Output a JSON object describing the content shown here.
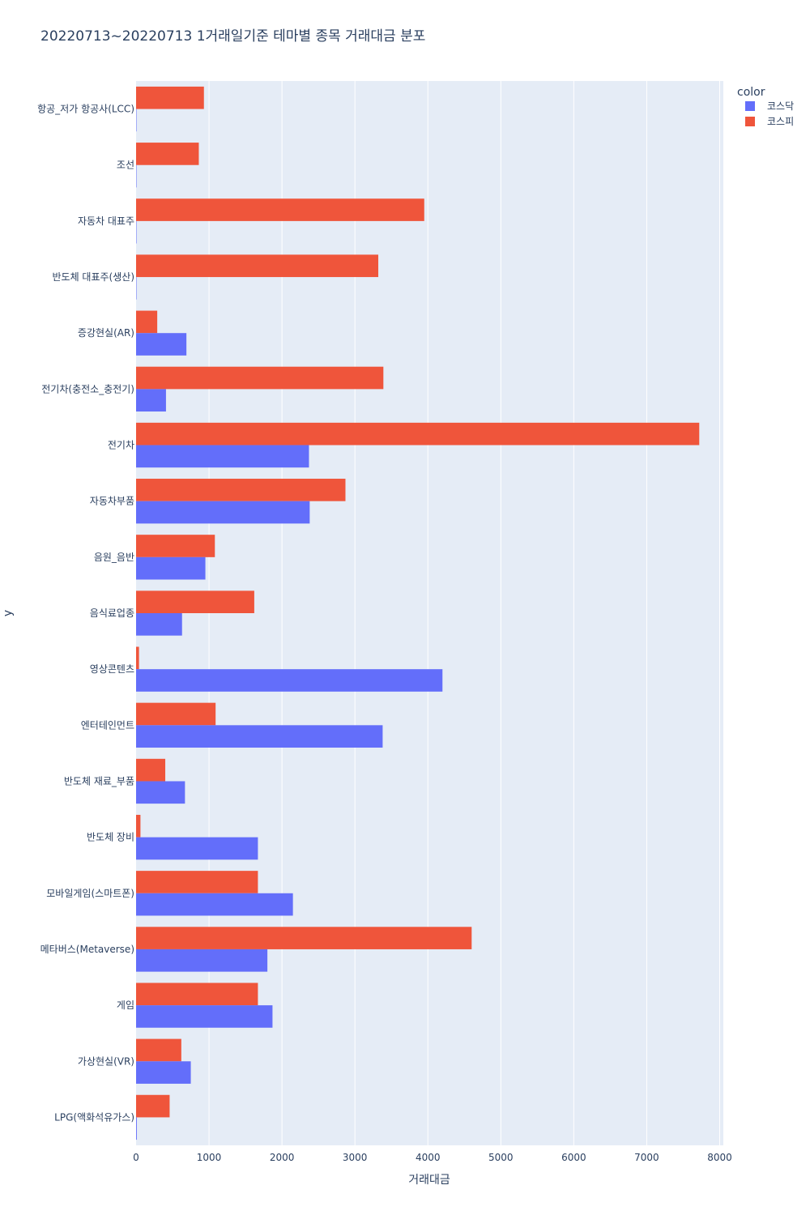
{
  "chart_data": {
    "type": "bar",
    "orientation": "horizontal",
    "title": "20220713~20220713 1거래일기준 테마별 종목 거래대금 분포",
    "xlabel": "거래대금",
    "ylabel": "y",
    "xlim": [
      0,
      8050
    ],
    "xticks": [
      0,
      1000,
      2000,
      3000,
      4000,
      5000,
      6000,
      7000,
      8000
    ],
    "grid": true,
    "legend": {
      "title": "color",
      "position": "top-right"
    },
    "categories": [
      "항공_저가 항공사(LCC)",
      "조선",
      "자동차 대표주",
      "반도체 대표주(생산)",
      "증강현실(AR)",
      "전기차(충전소_충전기)",
      "전기차",
      "자동차부품",
      "음원_음반",
      "음식료업종",
      "영상콘텐츠",
      "엔터테인먼트",
      "반도체 재료_부품",
      "반도체 장비",
      "모바일게임(스마트폰)",
      "메타버스(Metaverse)",
      "게임",
      "가상현실(VR)",
      "LPG(액화석유가스)"
    ],
    "series": [
      {
        "name": "코스닥",
        "color": "#636efa",
        "values": [
          0,
          0,
          0,
          0,
          690,
          410,
          2370,
          2380,
          950,
          630,
          4200,
          3380,
          670,
          1670,
          2150,
          1800,
          1870,
          750,
          10
        ]
      },
      {
        "name": "코스피",
        "color": "#ef553b",
        "values": [
          930,
          860,
          3950,
          3320,
          290,
          3390,
          7720,
          2870,
          1080,
          1620,
          40,
          1090,
          400,
          60,
          1670,
          4600,
          1670,
          620,
          460
        ]
      }
    ]
  }
}
